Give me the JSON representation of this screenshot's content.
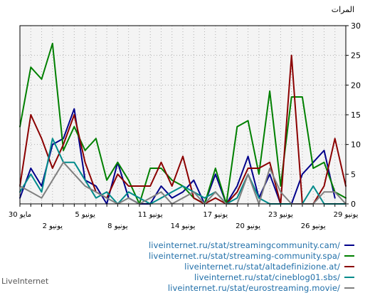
{
  "chart_data": {
    "type": "line",
    "title": "",
    "ylabel": "المرات",
    "xlabel": "",
    "ylim": [
      0,
      30
    ],
    "yticks": [
      0,
      5,
      10,
      15,
      20,
      25,
      30
    ],
    "grid": true,
    "legend_position": "bottom-right",
    "x": [
      30,
      29,
      28,
      27,
      26,
      25,
      24,
      23,
      22,
      21,
      20,
      19,
      18,
      17,
      16,
      15,
      14,
      13,
      12,
      11,
      10,
      9,
      8,
      7,
      6,
      5,
      4,
      3,
      2,
      1,
      0
    ],
    "x_tick_labels": [
      {
        "label": "30 مايو",
        "row": 1
      },
      {
        "label": "2 يونيو",
        "row": 2
      },
      {
        "label": "5 يونيو",
        "row": 1
      },
      {
        "label": "8 يونيو",
        "row": 2
      },
      {
        "label": "11 يونيو",
        "row": 1
      },
      {
        "label": "14 يونيو",
        "row": 2
      },
      {
        "label": "17 يونيو",
        "row": 1
      },
      {
        "label": "20 يونيو",
        "row": 2
      },
      {
        "label": "23 يونيو",
        "row": 1
      },
      {
        "label": "26 يونيو",
        "row": 2
      },
      {
        "label": "29 يونيو",
        "row": 1
      }
    ],
    "series": [
      {
        "name": "liveinternet.ru/stat/streamingcommunity.cam/",
        "color": "#00008b",
        "values": [
          1,
          6,
          3,
          10,
          11,
          16,
          4,
          3,
          0,
          7,
          1,
          0,
          0,
          3,
          1,
          2,
          4,
          0,
          5,
          0,
          3,
          8,
          1,
          5,
          0,
          0,
          5,
          7,
          9,
          1,
          null
        ]
      },
      {
        "name": "liveinternet.ru/stat/streaming-community.spa/",
        "color": "#008000",
        "values": [
          13,
          23,
          21,
          27,
          9,
          13,
          9,
          11,
          4,
          7,
          4,
          0,
          6,
          6,
          4,
          3,
          1,
          0,
          6,
          0,
          13,
          14,
          5,
          19,
          3,
          18,
          18,
          6,
          7,
          2,
          1
        ]
      },
      {
        "name": "liveinternet.ru/stat/altadefinizione.at/",
        "color": "#8b0000",
        "values": [
          3,
          15,
          11,
          6,
          10,
          15,
          7,
          2,
          1,
          5,
          3,
          3,
          3,
          7,
          3,
          8,
          1,
          0,
          1,
          0,
          2,
          6,
          6,
          7,
          0,
          25,
          0,
          0,
          3,
          11,
          3
        ]
      },
      {
        "name": "liveinternet.ru/stat/cineblog01.sbs/",
        "color": "#008b8b",
        "values": [
          2,
          5,
          2,
          11,
          7,
          7,
          4,
          1,
          2,
          0,
          2,
          1,
          0,
          1,
          2,
          3,
          2,
          1,
          2,
          0,
          1,
          5,
          1,
          0,
          0,
          0,
          0,
          3,
          0,
          0,
          0
        ]
      },
      {
        "name": "liveinternet.ru/stat/eurostreaming.movie/",
        "color": "#808080",
        "values": [
          3,
          2,
          1,
          4,
          7,
          5,
          3,
          2,
          1,
          0,
          1,
          0,
          1,
          2,
          0,
          1,
          2,
          0,
          2,
          0,
          0,
          5,
          0,
          6,
          2,
          0,
          0,
          0,
          2,
          2,
          0
        ]
      }
    ]
  },
  "footer": {
    "credit": "LiveInternet"
  }
}
